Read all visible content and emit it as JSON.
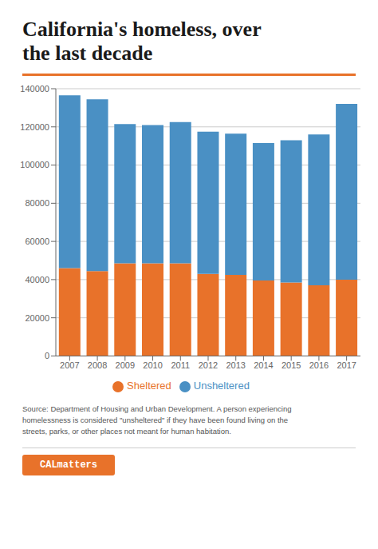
{
  "chart_data": {
    "type": "bar",
    "title": "California's homeless, over\nthe last decade",
    "categories": [
      "2007",
      "2008",
      "2009",
      "2010",
      "2011",
      "2012",
      "2013",
      "2014",
      "2015",
      "2016",
      "2017"
    ],
    "series": [
      {
        "name": "Sheltered",
        "color": "#E8722A",
        "values": [
          46000,
          44500,
          48500,
          48500,
          48500,
          43000,
          42500,
          39500,
          38500,
          37000,
          40000
        ]
      },
      {
        "name": "Unsheltered",
        "color": "#4A90C4",
        "values": [
          90500,
          90000,
          73000,
          72500,
          74000,
          74500,
          74000,
          72000,
          74500,
          79000,
          92000
        ]
      }
    ],
    "stacked": true,
    "ylim": [
      0,
      140000
    ],
    "yticks": [
      0,
      20000,
      40000,
      60000,
      80000,
      100000,
      120000,
      140000
    ],
    "grid": true,
    "legend": "bottom",
    "annotations": [
      "Source: Department of Housing and Urban Development. A person experiencing\nhomelessness is considered \"unsheltered\" if they have been found living on the\nstreets, parks, or other places not meant for human habitation.",
      "CALmatters"
    ]
  }
}
